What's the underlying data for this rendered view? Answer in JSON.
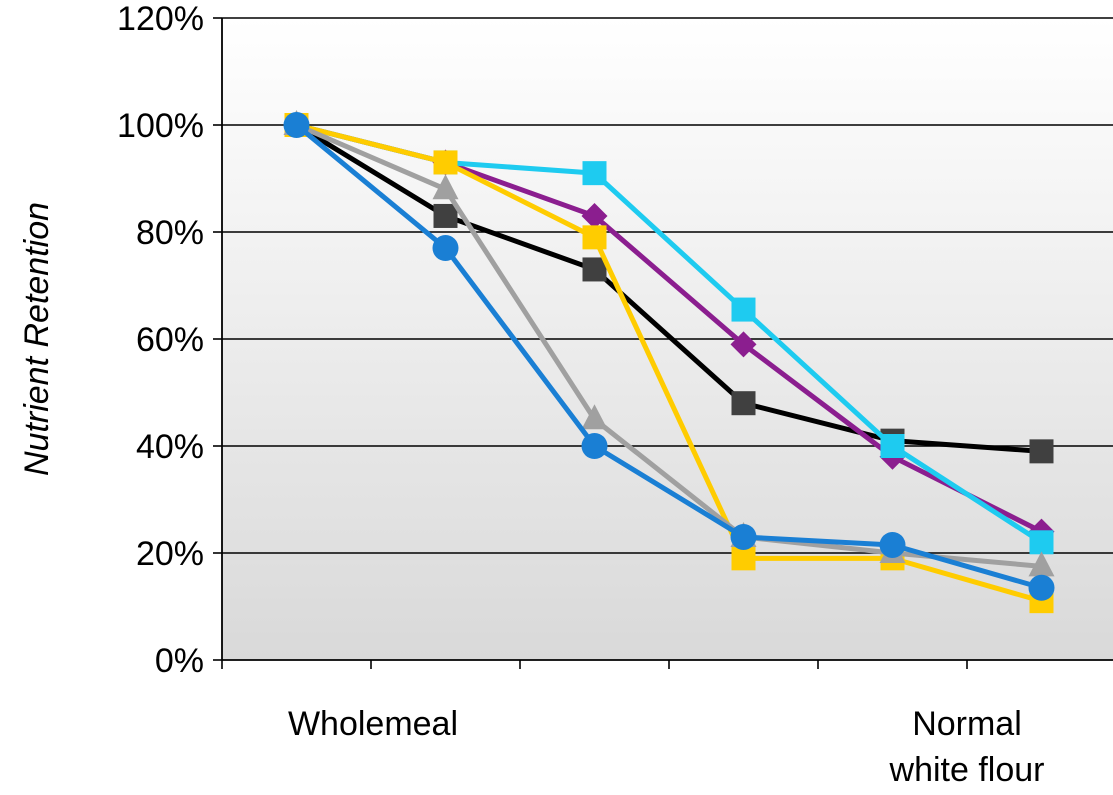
{
  "chart_data": {
    "type": "line",
    "title": "",
    "ylabel": "Nutrient Retention",
    "xlabel": "",
    "ylim": [
      0,
      120
    ],
    "yticks": [
      "0%",
      "20%",
      "40%",
      "60%",
      "80%",
      "100%",
      "120%"
    ],
    "ytick_values": [
      0,
      20,
      40,
      60,
      80,
      100,
      120
    ],
    "grid": true,
    "legend": "none",
    "x_labels": {
      "first": "Wholemeal",
      "last_line1": "Normal",
      "last_line2": "white flour"
    },
    "x": [
      1,
      2,
      3,
      4,
      5,
      6
    ],
    "series": [
      {
        "color": "#000000",
        "marker": "square",
        "marker_color": "#404040",
        "values": [
          100,
          83,
          73,
          48,
          41,
          39
        ]
      },
      {
        "color": "#8B1E8F",
        "marker": "diamond",
        "marker_color": "#8B1E8F",
        "values": [
          100,
          93,
          83,
          59,
          38,
          24
        ]
      },
      {
        "color": "#1ECBF0",
        "marker": "square",
        "marker_color": "#1ECBF0",
        "values": [
          100,
          93,
          91,
          65.5,
          40,
          22
        ]
      },
      {
        "color": "#FFCC00",
        "marker": "square",
        "marker_color": "#FFCC00",
        "values": [
          100,
          93,
          79,
          19,
          19,
          11
        ]
      },
      {
        "color": "#A0A0A0",
        "marker": "triangle",
        "marker_color": "#A0A0A0",
        "values": [
          100,
          88,
          45,
          23,
          20,
          17.5
        ]
      },
      {
        "color": "#1A7FD4",
        "marker": "circle",
        "marker_color": "#1A7FD4",
        "values": [
          100,
          77,
          40,
          23,
          21.5,
          13.5
        ]
      }
    ]
  }
}
